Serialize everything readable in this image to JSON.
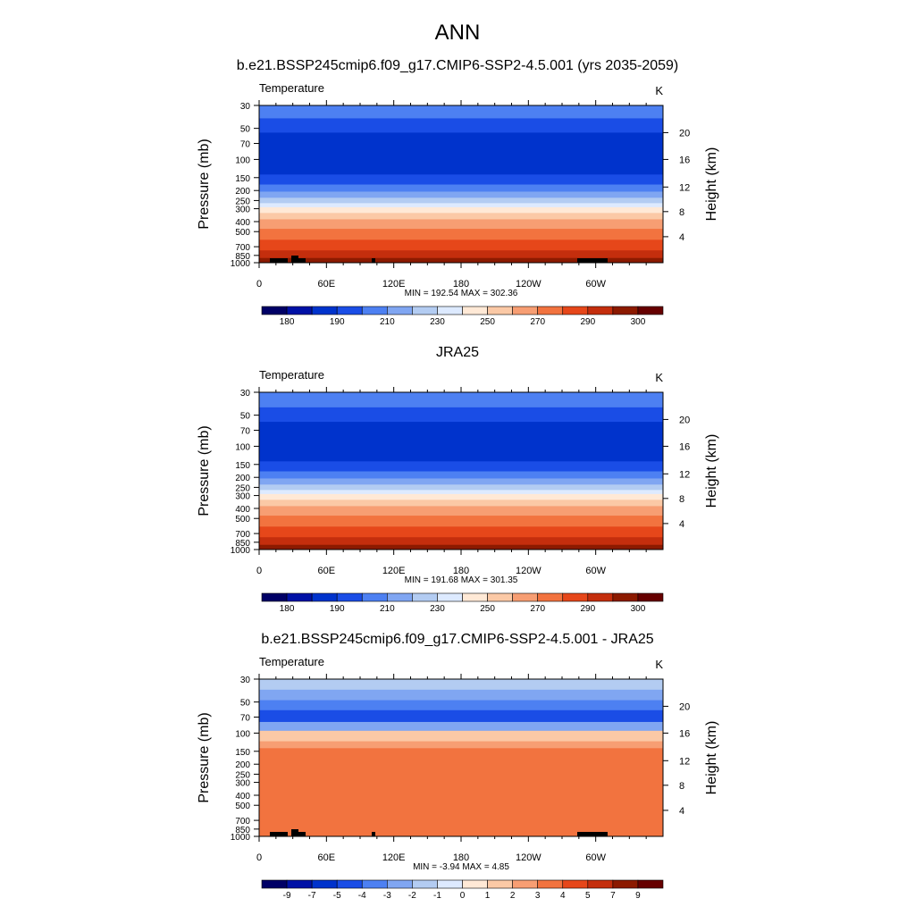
{
  "figure": {
    "title": "ANN"
  },
  "chart_data": [
    {
      "type": "heatmap",
      "title": "b.e21.BSSP245cmip6.f09_g17.CMIP6-SSP2-4.5.001 (yrs 2035-2059)",
      "left_string": "Temperature",
      "right_string": "K",
      "ylabel": "Pressure (mb)",
      "ylabel_right": "Height (km)",
      "x_ticks": [
        "0",
        "60E",
        "120E",
        "180",
        "120W",
        "60W"
      ],
      "y_ticks": [
        "30",
        "50",
        "70",
        "100",
        "150",
        "200",
        "250",
        "300",
        "400",
        "500",
        "700",
        "850",
        "1000"
      ],
      "y_ticks_right": [
        "20",
        "16",
        "12",
        "8",
        "4"
      ],
      "minmax_label": "MIN = 192.54  MAX = 302.36",
      "min": 192.54,
      "max": 302.36,
      "colorbar_labels": [
        "180",
        "190",
        "210",
        "230",
        "250",
        "270",
        "290",
        "300"
      ],
      "contour_levels": [
        180,
        185,
        190,
        200,
        210,
        220,
        230,
        240,
        250,
        260,
        270,
        280,
        290,
        295,
        300
      ],
      "layers": [
        {
          "top_mb": 30,
          "bottom_mb": 40,
          "color_index": 4
        },
        {
          "top_mb": 40,
          "bottom_mb": 55,
          "color_index": 3
        },
        {
          "top_mb": 55,
          "bottom_mb": 140,
          "color_index": 2
        },
        {
          "top_mb": 140,
          "bottom_mb": 175,
          "color_index": 3
        },
        {
          "top_mb": 175,
          "bottom_mb": 205,
          "color_index": 4
        },
        {
          "top_mb": 205,
          "bottom_mb": 235,
          "color_index": 5
        },
        {
          "top_mb": 235,
          "bottom_mb": 265,
          "color_index": 6
        },
        {
          "top_mb": 265,
          "bottom_mb": 290,
          "color_index": 7
        },
        {
          "top_mb": 290,
          "bottom_mb": 330,
          "color_index": 8
        },
        {
          "top_mb": 330,
          "bottom_mb": 380,
          "color_index": 9
        },
        {
          "top_mb": 380,
          "bottom_mb": 470,
          "color_index": 10
        },
        {
          "top_mb": 470,
          "bottom_mb": 600,
          "color_index": 11
        },
        {
          "top_mb": 600,
          "bottom_mb": 760,
          "color_index": 12
        },
        {
          "top_mb": 760,
          "bottom_mb": 900,
          "color_index": 13
        },
        {
          "top_mb": 900,
          "bottom_mb": 1000,
          "color_index": 14
        }
      ],
      "terrain": true
    },
    {
      "type": "heatmap",
      "title": "JRA25",
      "left_string": "Temperature",
      "right_string": "K",
      "ylabel": "Pressure (mb)",
      "ylabel_right": "Height (km)",
      "x_ticks": [
        "0",
        "60E",
        "120E",
        "180",
        "120W",
        "60W"
      ],
      "y_ticks": [
        "30",
        "50",
        "70",
        "100",
        "150",
        "200",
        "250",
        "300",
        "400",
        "500",
        "700",
        "850",
        "1000"
      ],
      "y_ticks_right": [
        "20",
        "16",
        "12",
        "8",
        "4"
      ],
      "minmax_label": "MIN = 191.68  MAX = 301.35",
      "min": 191.68,
      "max": 301.35,
      "colorbar_labels": [
        "180",
        "190",
        "210",
        "230",
        "250",
        "270",
        "290",
        "300"
      ],
      "contour_levels": [
        180,
        185,
        190,
        200,
        210,
        220,
        230,
        240,
        250,
        260,
        270,
        280,
        290,
        295,
        300
      ],
      "layers": [
        {
          "top_mb": 30,
          "bottom_mb": 42,
          "color_index": 4
        },
        {
          "top_mb": 42,
          "bottom_mb": 58,
          "color_index": 3
        },
        {
          "top_mb": 58,
          "bottom_mb": 140,
          "color_index": 2
        },
        {
          "top_mb": 140,
          "bottom_mb": 175,
          "color_index": 3
        },
        {
          "top_mb": 175,
          "bottom_mb": 205,
          "color_index": 4
        },
        {
          "top_mb": 205,
          "bottom_mb": 235,
          "color_index": 5
        },
        {
          "top_mb": 235,
          "bottom_mb": 265,
          "color_index": 6
        },
        {
          "top_mb": 265,
          "bottom_mb": 290,
          "color_index": 7
        },
        {
          "top_mb": 290,
          "bottom_mb": 330,
          "color_index": 8
        },
        {
          "top_mb": 330,
          "bottom_mb": 380,
          "color_index": 9
        },
        {
          "top_mb": 380,
          "bottom_mb": 470,
          "color_index": 10
        },
        {
          "top_mb": 470,
          "bottom_mb": 600,
          "color_index": 11
        },
        {
          "top_mb": 600,
          "bottom_mb": 760,
          "color_index": 12
        },
        {
          "top_mb": 760,
          "bottom_mb": 900,
          "color_index": 13
        },
        {
          "top_mb": 900,
          "bottom_mb": 1000,
          "color_index": 14
        }
      ],
      "terrain": false
    },
    {
      "type": "heatmap",
      "title": "b.e21.BSSP245cmip6.f09_g17.CMIP6-SSP2-4.5.001 - JRA25",
      "left_string": "Temperature",
      "right_string": "K",
      "ylabel": "Pressure (mb)",
      "ylabel_right": "Height (km)",
      "x_ticks": [
        "0",
        "60E",
        "120E",
        "180",
        "120W",
        "60W"
      ],
      "y_ticks": [
        "30",
        "50",
        "70",
        "100",
        "150",
        "200",
        "250",
        "300",
        "400",
        "500",
        "700",
        "850",
        "1000"
      ],
      "y_ticks_right": [
        "20",
        "16",
        "12",
        "8",
        "4"
      ],
      "minmax_label": "MIN = -3.94  MAX =  4.85",
      "min": -3.94,
      "max": 4.85,
      "colorbar_labels": [
        "-9",
        "-7",
        "-5",
        "-4",
        "-3",
        "-2",
        "-1",
        "0",
        "1",
        "2",
        "3",
        "4",
        "5",
        "7",
        "9"
      ],
      "contour_levels": [
        -9,
        -7,
        -5,
        -4,
        -3,
        -2,
        -1,
        0,
        1,
        2,
        3,
        4,
        5,
        7,
        9
      ],
      "layers": [
        {
          "top_mb": 30,
          "bottom_mb": 38,
          "color_index": 6
        },
        {
          "top_mb": 38,
          "bottom_mb": 48,
          "color_index": 5
        },
        {
          "top_mb": 48,
          "bottom_mb": 60,
          "color_index": 4
        },
        {
          "top_mb": 60,
          "bottom_mb": 78,
          "color_index": 3
        },
        {
          "top_mb": 78,
          "bottom_mb": 95,
          "color_index": 5
        },
        {
          "top_mb": 95,
          "bottom_mb": 120,
          "color_index": 9
        },
        {
          "top_mb": 120,
          "bottom_mb": 140,
          "color_index": 10
        },
        {
          "top_mb": 140,
          "bottom_mb": 1000,
          "color_index": 11
        }
      ],
      "terrain": true
    }
  ],
  "colors": {
    "absolute_palette": [
      "#000066",
      "#0011a6",
      "#0033cc",
      "#1a4de6",
      "#4d80f2",
      "#80a6f2",
      "#b3ccf2",
      "#ddeaff",
      "#ffe9d6",
      "#fbc9a6",
      "#f79e73",
      "#f2733f",
      "#e6471a",
      "#c42e0d",
      "#8c1a00",
      "#660000"
    ],
    "difference_palette": [
      "#000066",
      "#0011a6",
      "#0033cc",
      "#1a4de6",
      "#4d80f2",
      "#80a6f2",
      "#b3ccf2",
      "#ddeaff",
      "#ffe9d6",
      "#fbc9a6",
      "#f79e73",
      "#f2733f",
      "#e6471a",
      "#c42e0d",
      "#8c1a00",
      "#660000"
    ],
    "terrain": "#000000",
    "axis": "#000000"
  }
}
